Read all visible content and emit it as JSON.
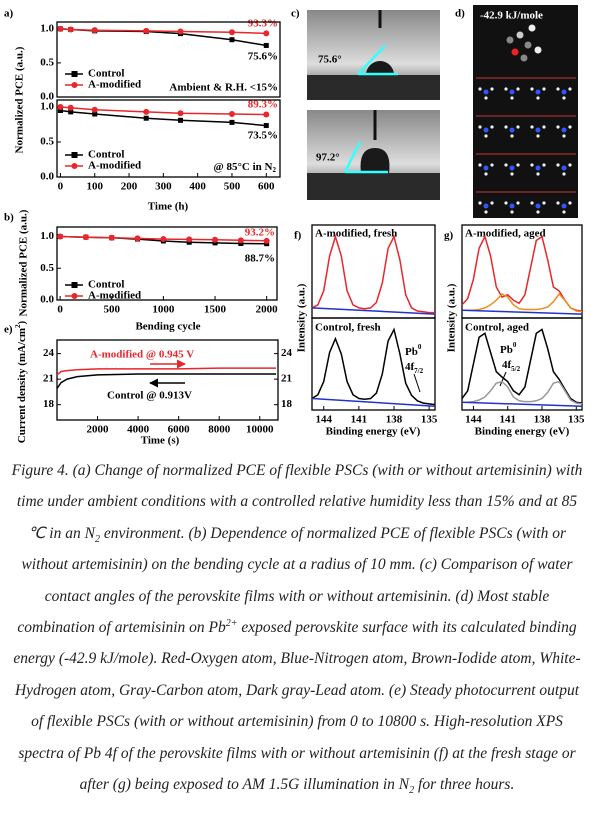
{
  "panel_labels": [
    "a)",
    "b)",
    "c)",
    "d)",
    "e)",
    "f)",
    "g)"
  ],
  "chart_data": [
    {
      "type": "line",
      "ylabel": "Normalized PCE (a.u.)",
      "x": [
        0,
        30,
        100,
        250,
        350,
        500,
        600
      ],
      "xlim": [
        -10,
        640
      ],
      "ylim": [
        0,
        1.1
      ],
      "yticks": [
        {
          "value": 0,
          "label": "0.0"
        },
        {
          "value": 0.5,
          "label": "0.5"
        },
        {
          "value": 1,
          "label": "1.0"
        }
      ],
      "series": [
        {
          "name": "Control",
          "color": "#000000",
          "marker": "square",
          "values": [
            1.0,
            0.99,
            0.97,
            0.96,
            0.93,
            0.84,
            0.756
          ]
        },
        {
          "name": "A-modified",
          "color": "#e8262b",
          "marker": "circle",
          "values": [
            1.0,
            0.99,
            0.98,
            0.97,
            0.96,
            0.95,
            0.933
          ]
        }
      ],
      "annotations": [
        "93.3%",
        "75.6%",
        "Ambient & R.H. <15%"
      ]
    },
    {
      "type": "line",
      "xlabel": "Time (h)",
      "x": [
        0,
        30,
        100,
        250,
        350,
        500,
        600
      ],
      "xlim": [
        -10,
        640
      ],
      "ylim": [
        0,
        1.1
      ],
      "xticks": [
        0,
        100,
        200,
        300,
        400,
        500,
        600
      ],
      "yticks": [
        {
          "value": 0,
          "label": "0.0"
        },
        {
          "value": 0.5,
          "label": "0.5"
        },
        {
          "value": 1,
          "label": "1.0"
        }
      ],
      "series": [
        {
          "name": "Control",
          "color": "#000000",
          "marker": "square",
          "values": [
            0.95,
            0.93,
            0.9,
            0.84,
            0.81,
            0.78,
            0.735
          ]
        },
        {
          "name": "A-modified",
          "color": "#e8262b",
          "marker": "circle",
          "values": [
            1.0,
            0.99,
            0.96,
            0.93,
            0.91,
            0.9,
            0.893
          ]
        }
      ],
      "annotations": [
        "89.3%",
        "73.5%",
        "@ 85°C in N",
        "2"
      ]
    },
    {
      "type": "line",
      "ylabel": "Normalized PCE (a.u.)",
      "xlabel": "Bending cycle",
      "x": [
        0,
        250,
        500,
        750,
        1000,
        1250,
        1500,
        1750,
        2000
      ],
      "xlim": [
        -30,
        2100
      ],
      "ylim": [
        0,
        1.15
      ],
      "xticks": [
        0,
        500,
        1000,
        1500,
        2000
      ],
      "yticks": [
        {
          "value": 0,
          "label": "0.0"
        },
        {
          "value": 0.5,
          "label": "0.5"
        },
        {
          "value": 1,
          "label": "1.0"
        }
      ],
      "series": [
        {
          "name": "Control",
          "color": "#000000",
          "marker": "square",
          "values": [
            1.0,
            0.99,
            0.98,
            0.96,
            0.93,
            0.91,
            0.9,
            0.89,
            0.887
          ]
        },
        {
          "name": "A-modified",
          "color": "#e8262b",
          "marker": "circle",
          "values": [
            1.0,
            0.99,
            0.98,
            0.97,
            0.96,
            0.955,
            0.95,
            0.94,
            0.932
          ]
        }
      ],
      "annotations": [
        "93.2%",
        "88.7%"
      ]
    },
    {
      "type": "line",
      "ylabel": [
        "Current density (mA/cm",
        "2",
        ")"
      ],
      "xlabel": "Time (s)",
      "x": [
        0,
        200,
        500,
        1000,
        2000,
        4000,
        6000,
        8000,
        10000,
        10800
      ],
      "xlim": [
        0,
        10900
      ],
      "ylim": [
        16.2,
        25.6
      ],
      "y2lim": [
        16.2,
        25.6
      ],
      "xticks": [
        2000,
        4000,
        6000,
        8000,
        10000
      ],
      "yticks": [
        18,
        21,
        24
      ],
      "y2ticks": [
        18,
        21,
        24
      ],
      "series": [
        {
          "name": "A-modified @ 0.945 V",
          "color": "#e8262b",
          "values": [
            21.5,
            21.9,
            22.0,
            22.1,
            22.2,
            22.2,
            22.2,
            22.3,
            22.3,
            22.3
          ]
        },
        {
          "name": "Control @ 0.913V",
          "color": "#000000",
          "values": [
            19.9,
            20.6,
            21.0,
            21.3,
            21.5,
            21.6,
            21.6,
            21.6,
            21.6,
            21.6
          ]
        }
      ]
    },
    {
      "type": "line",
      "ylabel": "Intensity (a.u.)",
      "title": "A-modified, fresh",
      "x": [
        145,
        144.5,
        144,
        143.5,
        143,
        142.5,
        142,
        141.5,
        141,
        140.5,
        140,
        139.5,
        139,
        138.5,
        138,
        137.5,
        137,
        136.5,
        136,
        135.5,
        135,
        134.5
      ],
      "xlim": [
        145,
        134.5
      ],
      "ylim": [
        -0.05,
        1.15
      ],
      "series": [
        {
          "color": "#e8262b",
          "values": [
            0.08,
            0.12,
            0.3,
            0.75,
            1.0,
            0.75,
            0.3,
            0.12,
            0.08,
            0.07,
            0.08,
            0.15,
            0.4,
            0.85,
            1.0,
            0.7,
            0.25,
            0.08,
            0.04,
            0.03,
            0.02,
            0.02
          ]
        },
        {
          "color": "#2233cc",
          "x": [
            145,
            134.5
          ],
          "values": [
            0.08,
            0.0
          ]
        }
      ]
    },
    {
      "type": "line",
      "xlabel": "Binding energy (eV)",
      "title": "Control, fresh",
      "x": [
        145,
        144.5,
        144,
        143.5,
        143,
        142.5,
        142,
        141.5,
        141,
        140.5,
        140,
        139.5,
        139,
        138.5,
        138,
        137.5,
        137,
        136.5,
        136,
        135.5,
        135,
        134.5
      ],
      "xlim": [
        145,
        134.5
      ],
      "ylim": [
        -0.05,
        1.15
      ],
      "xticks": [
        144,
        141,
        138,
        135
      ],
      "series": [
        {
          "color": "#000000",
          "values": [
            0.1,
            0.15,
            0.32,
            0.7,
            0.88,
            0.68,
            0.32,
            0.15,
            0.1,
            0.09,
            0.1,
            0.17,
            0.42,
            0.85,
            1.0,
            0.68,
            0.3,
            0.14,
            0.07,
            0.04,
            0.03,
            0.02
          ]
        },
        {
          "color": "#2233cc",
          "x": [
            145,
            134.5
          ],
          "values": [
            0.1,
            0.0
          ]
        }
      ],
      "annotations": [
        "Pb",
        "0",
        "4f",
        "7/2"
      ]
    },
    {
      "type": "line",
      "ylabel": "Intensity (a.u.)",
      "title": "A-modified, aged",
      "x": [
        145,
        144.5,
        144,
        143.5,
        143,
        142.5,
        142,
        141.5,
        141,
        140.5,
        140,
        139.5,
        139,
        138.5,
        138,
        137.5,
        137,
        136.5,
        136,
        135.5,
        135,
        134.5
      ],
      "xlim": [
        145,
        134.5
      ],
      "ylim": [
        -0.05,
        1.15
      ],
      "series": [
        {
          "color": "#e8262b",
          "values": [
            0.12,
            0.2,
            0.45,
            0.85,
            1.0,
            0.75,
            0.35,
            0.22,
            0.25,
            0.18,
            0.14,
            0.25,
            0.6,
            0.95,
            1.0,
            0.7,
            0.35,
            0.3,
            0.18,
            0.08,
            0.05,
            0.04
          ]
        },
        {
          "color": "#f08c1e",
          "values": [
            0.05,
            0.05,
            0.05,
            0.06,
            0.08,
            0.12,
            0.18,
            0.26,
            0.22,
            0.12,
            0.07,
            0.06,
            0.06,
            0.06,
            0.07,
            0.09,
            0.16,
            0.26,
            0.18,
            0.08,
            0.04,
            0.03
          ]
        },
        {
          "color": "#2233cc",
          "x": [
            145,
            134.5
          ],
          "values": [
            0.05,
            0.0
          ]
        }
      ]
    },
    {
      "type": "line",
      "xlabel": "Binding energy (eV)",
      "title": "Control, aged",
      "x": [
        145,
        144.5,
        144,
        143.5,
        143,
        142.5,
        142,
        141.5,
        141,
        140.5,
        140,
        139.5,
        139,
        138.5,
        138,
        137.5,
        137,
        136.5,
        136,
        135.5,
        135,
        134.5
      ],
      "xlim": [
        145,
        134.5
      ],
      "ylim": [
        -0.05,
        1.15
      ],
      "xticks": [
        144,
        141,
        138,
        135
      ],
      "series": [
        {
          "color": "#000000",
          "values": [
            0.1,
            0.2,
            0.55,
            0.9,
            0.95,
            0.7,
            0.45,
            0.38,
            0.32,
            0.2,
            0.15,
            0.25,
            0.6,
            0.95,
            1.0,
            0.75,
            0.45,
            0.35,
            0.22,
            0.1,
            0.05,
            0.04
          ]
        },
        {
          "color": "#999999",
          "values": [
            0.05,
            0.05,
            0.06,
            0.08,
            0.12,
            0.2,
            0.3,
            0.32,
            0.25,
            0.12,
            0.07,
            0.06,
            0.06,
            0.07,
            0.1,
            0.18,
            0.3,
            0.32,
            0.2,
            0.08,
            0.04,
            0.03
          ]
        },
        {
          "color": "#2233cc",
          "x": [
            145,
            134.5
          ],
          "values": [
            0.05,
            0.0
          ]
        }
      ],
      "annotations": [
        "Pb",
        "0",
        "4f",
        "5/2"
      ]
    }
  ],
  "images": {
    "contact_angles": [
      "75.6°",
      "97.2°"
    ],
    "binding_energy": "-42.9 kJ/mole"
  },
  "caption": [
    "Figure 4. (a) Change of normalized PCE of flexible PSCs (with or without artemisinin) with time under ambient conditions with a controlled relative humidity less than 15% and at 85 ℃ in an N",
    "2",
    " environment. (b) Dependence of normalized PCE of flexible PSCs (with or without artemisinin) on the bending cycle at a radius of 10 mm. (c) Comparison of water contact angles of the perovskite films with or without artemisinin. (d) Most stable combination of artemisinin on Pb",
    "2+",
    " exposed perovskite surface with its calculated binding energy (-42.9 kJ/mole). Red-Oxygen atom, Blue-Nitrogen atom, Brown-Iodide atom, White-Hydrogen atom, Gray-Carbon atom, Dark gray-Lead atom. (e) Steady photocurrent output of flexible PSCs (with or without artemisinin) from 0 to 10800 s. High-resolution XPS spectra of Pb 4f of the perovskite films with or without artemisinin (f) at the fresh stage or after (g) being exposed to AM 1.5G illumination in N",
    "2",
    " for three hours."
  ]
}
